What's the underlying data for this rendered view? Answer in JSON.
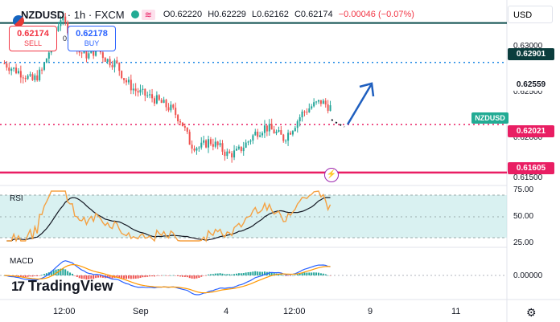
{
  "header": {
    "symbol": "NZDUSD",
    "interval": "1h",
    "exchange": "FXCM",
    "open": "O0.62220",
    "high": "H0.62229",
    "low": "L0.62162",
    "close": "C0.62174",
    "change": "−0.00046 (−0.07%)"
  },
  "trade": {
    "sell_price": "0.62174",
    "sell_label": "SELL",
    "buy_price": "0.62178",
    "buy_label": "BUY",
    "spread": "0.4"
  },
  "currency": "USD",
  "price_axis": {
    "labels": [
      "0.63000",
      "0.62500",
      "0.62000",
      "0.61500"
    ],
    "levels": [
      {
        "value": "0.62901",
        "color": "#0b4d4d"
      },
      {
        "value": "0.62559",
        "color": "#1e88e5"
      },
      {
        "value": "0.62021",
        "color": "#e91e63"
      },
      {
        "value": "0.61605",
        "color": "#e91e63"
      }
    ]
  },
  "symbol_tag": "NZDUSD",
  "rsi": {
    "label": "RSI",
    "labels": [
      "75.00",
      "50.00",
      "25.00"
    ]
  },
  "macd": {
    "label": "MACD",
    "labels": [
      "0.00000"
    ]
  },
  "time_axis": [
    "12:00",
    "Sep",
    "4",
    "12:00",
    "9",
    "11"
  ],
  "logo": {
    "mark": "17",
    "text": "TradingView"
  },
  "icons": [
    "flag-icon",
    "lightning-icon",
    "settings-icon",
    "arrow-icon"
  ],
  "chart_data": {
    "type": "candlestick",
    "symbol": "NZDUSD",
    "interval": "1h",
    "ylim": [
      0.615,
      0.631
    ],
    "horizontal_levels": [
      0.62901,
      0.62559,
      0.62021,
      0.61605
    ],
    "close_path": [
      0.6255,
      0.625,
      0.6246,
      0.624,
      0.6248,
      0.627,
      0.6295,
      0.6283,
      0.6265,
      0.6262,
      0.6268,
      0.6258,
      0.6255,
      0.624,
      0.6232,
      0.6228,
      0.6225,
      0.622,
      0.6215,
      0.6205,
      0.6185,
      0.6182,
      0.6188,
      0.6183,
      0.6176,
      0.6178,
      0.6186,
      0.6195,
      0.62,
      0.6196,
      0.619,
      0.62,
      0.6212,
      0.6218,
      0.6222,
      0.6217
    ],
    "projection": [
      0.6217,
      0.6256
    ],
    "rsi_range": [
      0,
      100
    ],
    "rsi_bands": [
      30,
      70
    ]
  }
}
